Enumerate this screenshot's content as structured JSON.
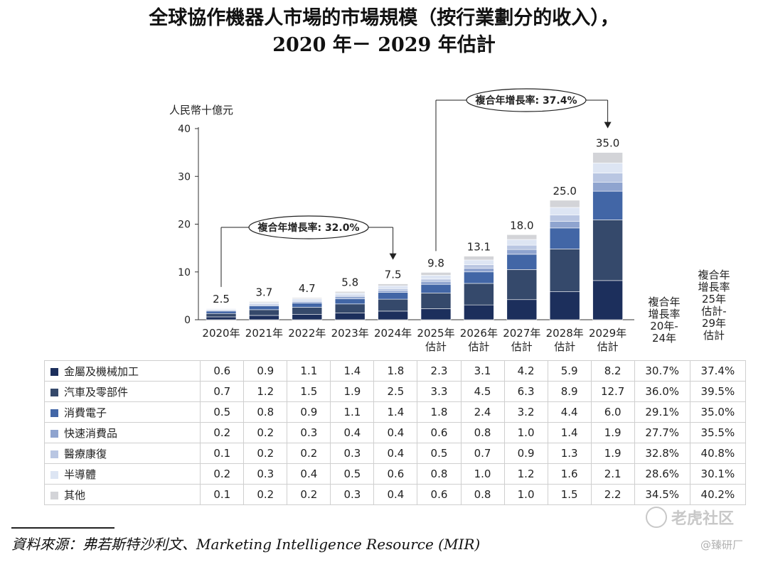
{
  "title_line1": "全球協作機器人市場的市場規模（按行業劃分的收入），",
  "title_line2": "2020 年－ 2029 年估計",
  "chart_data": {
    "type": "bar",
    "stacked": true,
    "ylabel": "人民幣十億元",
    "ylim": [
      0,
      40
    ],
    "yticks": [
      0,
      10,
      20,
      30,
      40
    ],
    "categories": [
      "2020年",
      "2021年",
      "2022年",
      "2023年",
      "2024年",
      "2025年\n估計",
      "2026年\n估計",
      "2027年\n估計",
      "2028年\n估計",
      "2029年\n估計"
    ],
    "totals": [
      "2.5",
      "3.7",
      "4.7",
      "5.8",
      "7.5",
      "9.8",
      "13.1",
      "18.0",
      "25.0",
      "35.0"
    ],
    "series": [
      {
        "name": "金屬及機械加工",
        "color": "#1c2f5c",
        "values": [
          0.6,
          0.9,
          1.1,
          1.4,
          1.8,
          2.3,
          3.1,
          4.2,
          5.9,
          8.2
        ],
        "labels": [
          "0.6",
          "0.9",
          "1.1",
          "1.4",
          "1.8",
          "2.3",
          "3.1",
          "4.2",
          "5.9",
          "8.2"
        ],
        "cagr": [
          "30.7%",
          "37.4%"
        ]
      },
      {
        "name": "汽車及零部件",
        "color": "#35496b",
        "values": [
          0.7,
          1.2,
          1.5,
          1.9,
          2.5,
          3.3,
          4.5,
          6.3,
          8.9,
          12.7
        ],
        "labels": [
          "0.7",
          "1.2",
          "1.5",
          "1.9",
          "2.5",
          "3.3",
          "4.5",
          "6.3",
          "8.9",
          "12.7"
        ],
        "cagr": [
          "36.0%",
          "39.5%"
        ]
      },
      {
        "name": "消費電子",
        "color": "#4266a6",
        "values": [
          0.5,
          0.8,
          0.9,
          1.1,
          1.4,
          1.8,
          2.4,
          3.2,
          4.4,
          6.0
        ],
        "labels": [
          "0.5",
          "0.8",
          "0.9",
          "1.1",
          "1.4",
          "1.8",
          "2.4",
          "3.2",
          "4.4",
          "6.0"
        ],
        "cagr": [
          "29.1%",
          "35.0%"
        ]
      },
      {
        "name": "快速消費品",
        "color": "#8fa4cf",
        "values": [
          0.2,
          0.2,
          0.3,
          0.4,
          0.4,
          0.6,
          0.8,
          1.0,
          1.4,
          1.9
        ],
        "labels": [
          "0.2",
          "0.2",
          "0.3",
          "0.4",
          "0.4",
          "0.6",
          "0.8",
          "1.0",
          "1.4",
          "1.9"
        ],
        "cagr": [
          "27.7%",
          "35.5%"
        ]
      },
      {
        "name": "醫療康復",
        "color": "#b9c6e2",
        "values": [
          0.1,
          0.2,
          0.2,
          0.3,
          0.4,
          0.5,
          0.7,
          0.9,
          1.3,
          1.9
        ],
        "labels": [
          "0.1",
          "0.2",
          "0.2",
          "0.3",
          "0.4",
          "0.5",
          "0.7",
          "0.9",
          "1.3",
          "1.9"
        ],
        "cagr": [
          "32.8%",
          "40.8%"
        ]
      },
      {
        "name": "半導體",
        "color": "#dde5f3",
        "values": [
          0.2,
          0.3,
          0.4,
          0.5,
          0.6,
          0.8,
          1.0,
          1.2,
          1.6,
          2.1
        ],
        "labels": [
          "0.2",
          "0.3",
          "0.4",
          "0.5",
          "0.6",
          "0.8",
          "1.0",
          "1.2",
          "1.6",
          "2.1"
        ],
        "cagr": [
          "28.6%",
          "30.1%"
        ]
      },
      {
        "name": "其他",
        "color": "#d3d4d8",
        "values": [
          0.1,
          0.2,
          0.2,
          0.3,
          0.4,
          0.6,
          0.8,
          1.0,
          1.5,
          2.2
        ],
        "labels": [
          "0.1",
          "0.2",
          "0.2",
          "0.3",
          "0.4",
          "0.6",
          "0.8",
          "1.0",
          "1.5",
          "2.2"
        ],
        "cagr": [
          "34.5%",
          "40.2%"
        ]
      }
    ],
    "cagr_headers": [
      "複合年\n增長率\n20年-\n24年",
      "複合年\n增長率\n25年\n估計-\n29年\n估計"
    ],
    "annotations": [
      {
        "text": "複合年增長率: 32.0%",
        "from": 0,
        "to": 4
      },
      {
        "text": "複合年增長率: 37.4%",
        "from": 5,
        "to": 9
      }
    ]
  },
  "source": "資料來源：弗若斯特沙利文、Marketing Intelligence Resource (MIR)",
  "watermark1": "老虎社区",
  "watermark2": "@臻研厂"
}
